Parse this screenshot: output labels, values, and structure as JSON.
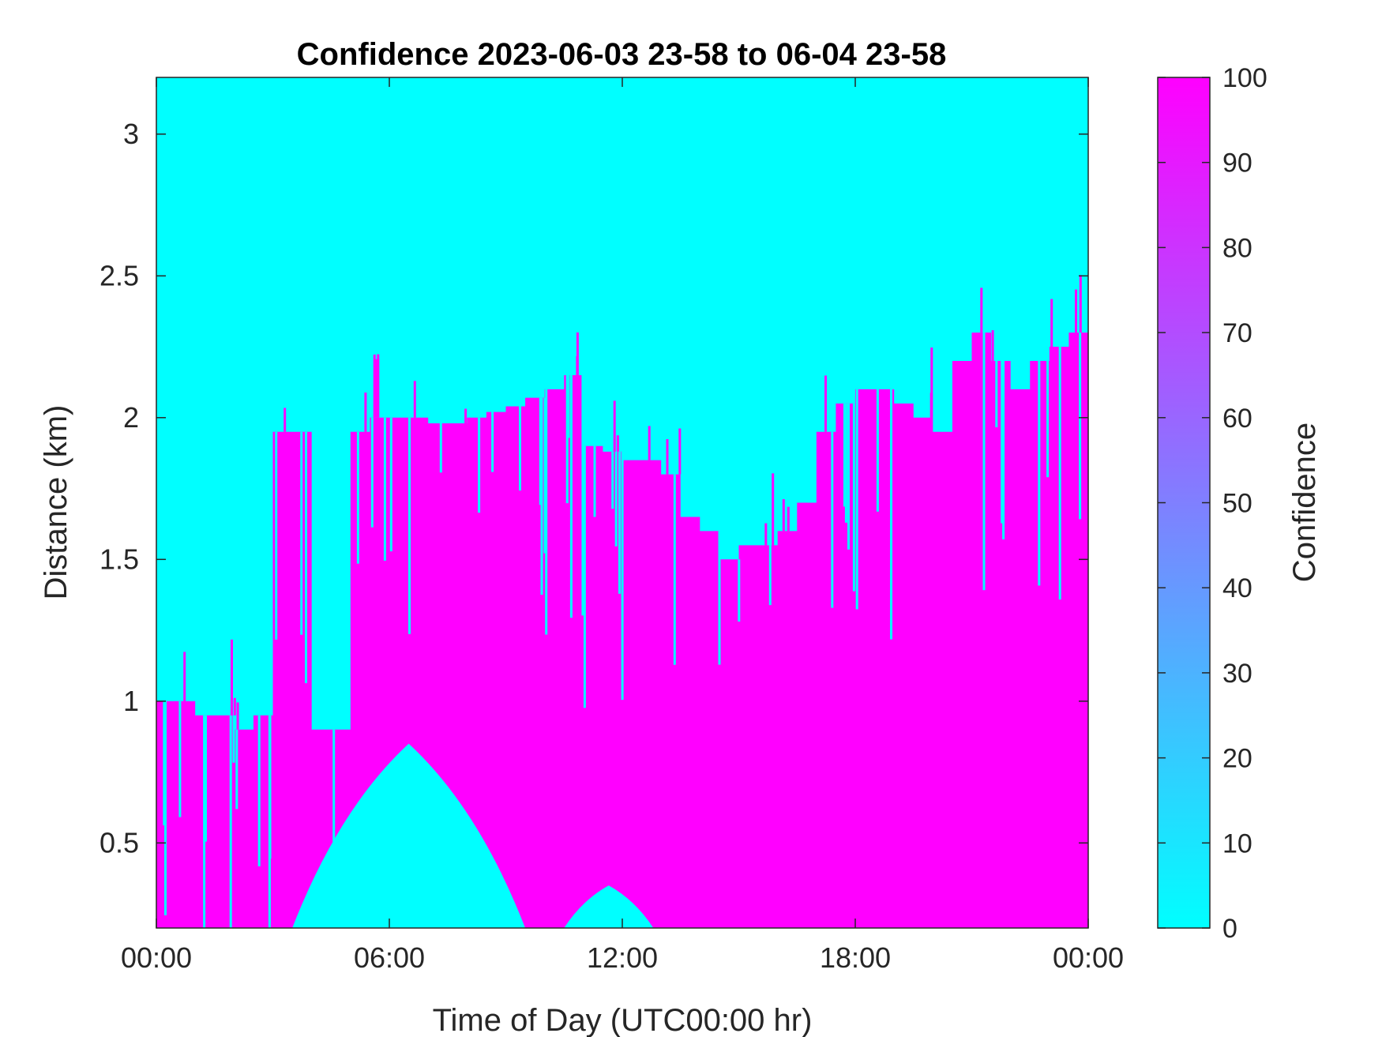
{
  "chart_data": {
    "type": "heatmap",
    "title": "Confidence 2023-06-03 23-58 to 06-04 23-58",
    "xlabel": "Time of Day (UTC00:00 hr)",
    "ylabel": "Distance (km)",
    "colorbar_label": "Confidence",
    "x_unit": "hours",
    "xlim": [
      0,
      24
    ],
    "ylim": [
      0.2,
      3.2
    ],
    "x_ticks": [
      0,
      6,
      12,
      18,
      24
    ],
    "x_tick_labels": [
      "00:00",
      "06:00",
      "12:00",
      "18:00",
      "00:00"
    ],
    "y_ticks": [
      0.5,
      1,
      1.5,
      2,
      2.5,
      3
    ],
    "y_tick_labels": [
      "0.5",
      "1",
      "1.5",
      "2",
      "2.5",
      "3"
    ],
    "colorbar_ticks": [
      0,
      10,
      20,
      30,
      40,
      50,
      60,
      70,
      80,
      90,
      100
    ],
    "colorbar_tick_labels": [
      "0",
      "10",
      "20",
      "30",
      "40",
      "50",
      "60",
      "70",
      "80",
      "90",
      "100"
    ],
    "clim": [
      0,
      100
    ],
    "colormap": {
      "low": "#00ffff",
      "high": "#ff00ff"
    },
    "grid": false,
    "high_confidence_top_km": {
      "x": [
        0,
        0.5,
        1,
        1.5,
        2,
        2.5,
        3,
        3.5,
        4,
        4.5,
        5,
        5.5,
        6,
        6.5,
        7,
        7.5,
        8,
        8.5,
        9,
        9.5,
        10,
        10.5,
        11,
        11.5,
        12,
        12.5,
        13,
        13.5,
        14,
        14.5,
        15,
        15.5,
        16,
        16.5,
        17,
        17.5,
        18,
        18.5,
        19,
        19.5,
        20,
        20.5,
        21,
        21.5,
        22,
        22.5,
        23,
        23.5,
        24
      ],
      "y": [
        1.0,
        1.0,
        0.95,
        0.95,
        0.9,
        0.95,
        1.95,
        1.95,
        0.9,
        0.9,
        1.95,
        2.0,
        2.0,
        2.0,
        1.98,
        1.98,
        2.0,
        2.02,
        2.04,
        2.07,
        2.1,
        2.15,
        1.9,
        1.88,
        1.85,
        1.85,
        1.8,
        1.65,
        1.6,
        1.5,
        1.55,
        1.55,
        1.6,
        1.7,
        1.95,
        2.05,
        2.1,
        2.1,
        2.05,
        2.0,
        1.95,
        2.2,
        2.3,
        2.2,
        2.1,
        2.2,
        2.25,
        2.3,
        2.5
      ]
    },
    "low_confidence_pockets": [
      {
        "x": [
          3.5,
          9.5
        ],
        "y_km": [
          0.2,
          0.85
        ]
      },
      {
        "x": [
          10.5,
          12.8
        ],
        "y_km": [
          0.2,
          0.35
        ]
      }
    ]
  }
}
